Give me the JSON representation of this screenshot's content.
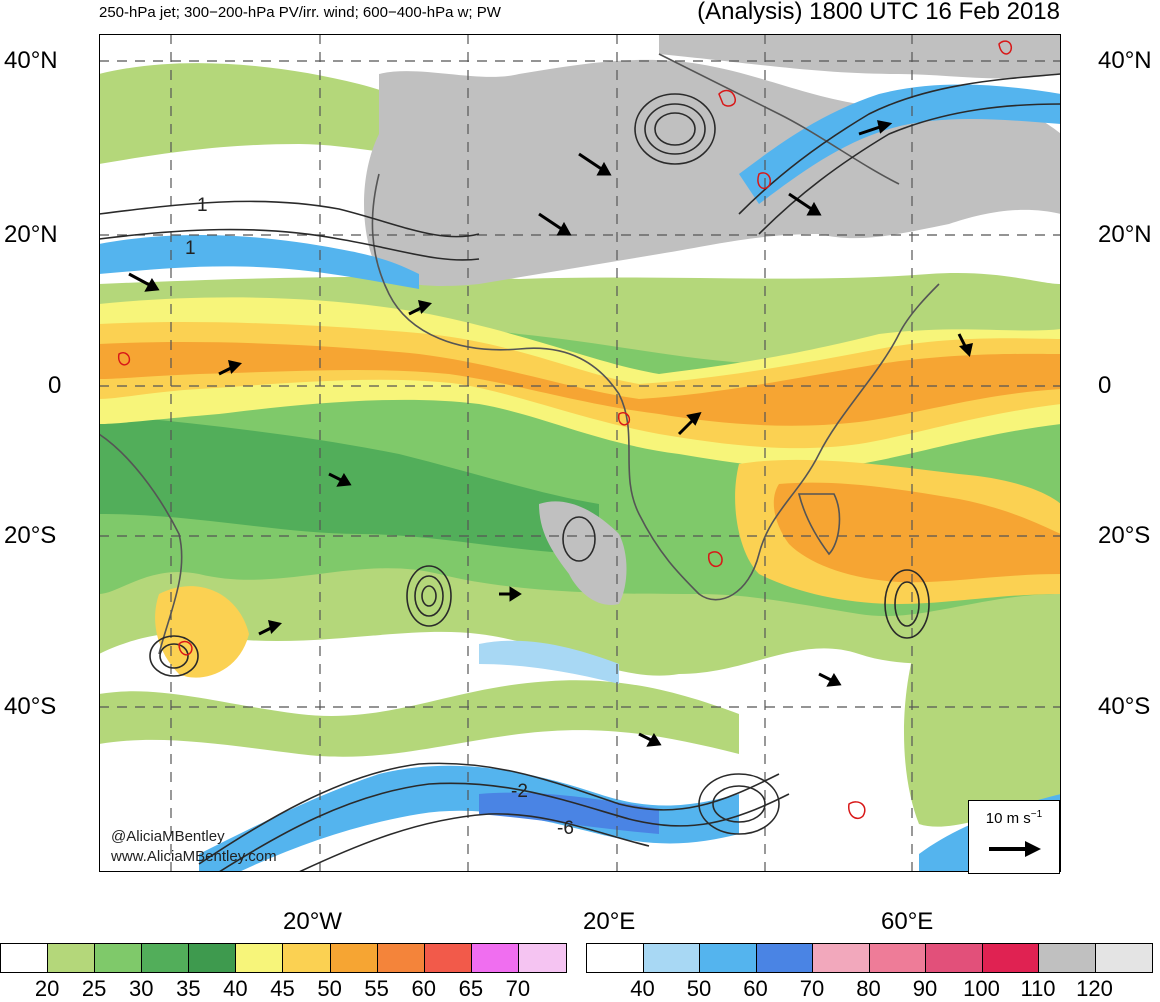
{
  "header": {
    "left_title": "250-hPa jet; 300−200-hPa PV/irr. wind; 600−400-hPa w; PW",
    "right_title": "(Analysis) 1800 UTC 16 Feb 2018"
  },
  "latitude_labels": [
    "40°N",
    "20°N",
    "0",
    "20°S",
    "40°S"
  ],
  "longitude_labels": [
    "20°W",
    "20°E",
    "60°E"
  ],
  "contour_labels": [
    "1",
    "1",
    "-2",
    "-6"
  ],
  "reference_vector": {
    "label": "10 m s",
    "exponent": "−1"
  },
  "credits": [
    "@AliciaMBentley",
    "www.AliciaMBentley.com"
  ],
  "pw_colorbar": {
    "ticks": [
      "20",
      "25",
      "30",
      "35",
      "40",
      "45",
      "50",
      "55",
      "60",
      "65",
      "70"
    ],
    "colors": [
      "#ffffff",
      "#b4d77a",
      "#7fc96a",
      "#52ae5a",
      "#3e9a4e",
      "#f7f57a",
      "#fbd152",
      "#f6a533",
      "#f4843a",
      "#f25a4a",
      "#f06ef0",
      "#f5c4f2"
    ]
  },
  "jet_colorbar": {
    "ticks": [
      "40",
      "50",
      "60",
      "70",
      "80",
      "90",
      "100",
      "110",
      "120"
    ],
    "colors": [
      "#ffffff",
      "#a8d8f4",
      "#54b4ee",
      "#4a84e4",
      "#f2a8bc",
      "#ee7c98",
      "#e2507a",
      "#e02252",
      "#c0c0c0",
      "#e4e4e4"
    ]
  }
}
